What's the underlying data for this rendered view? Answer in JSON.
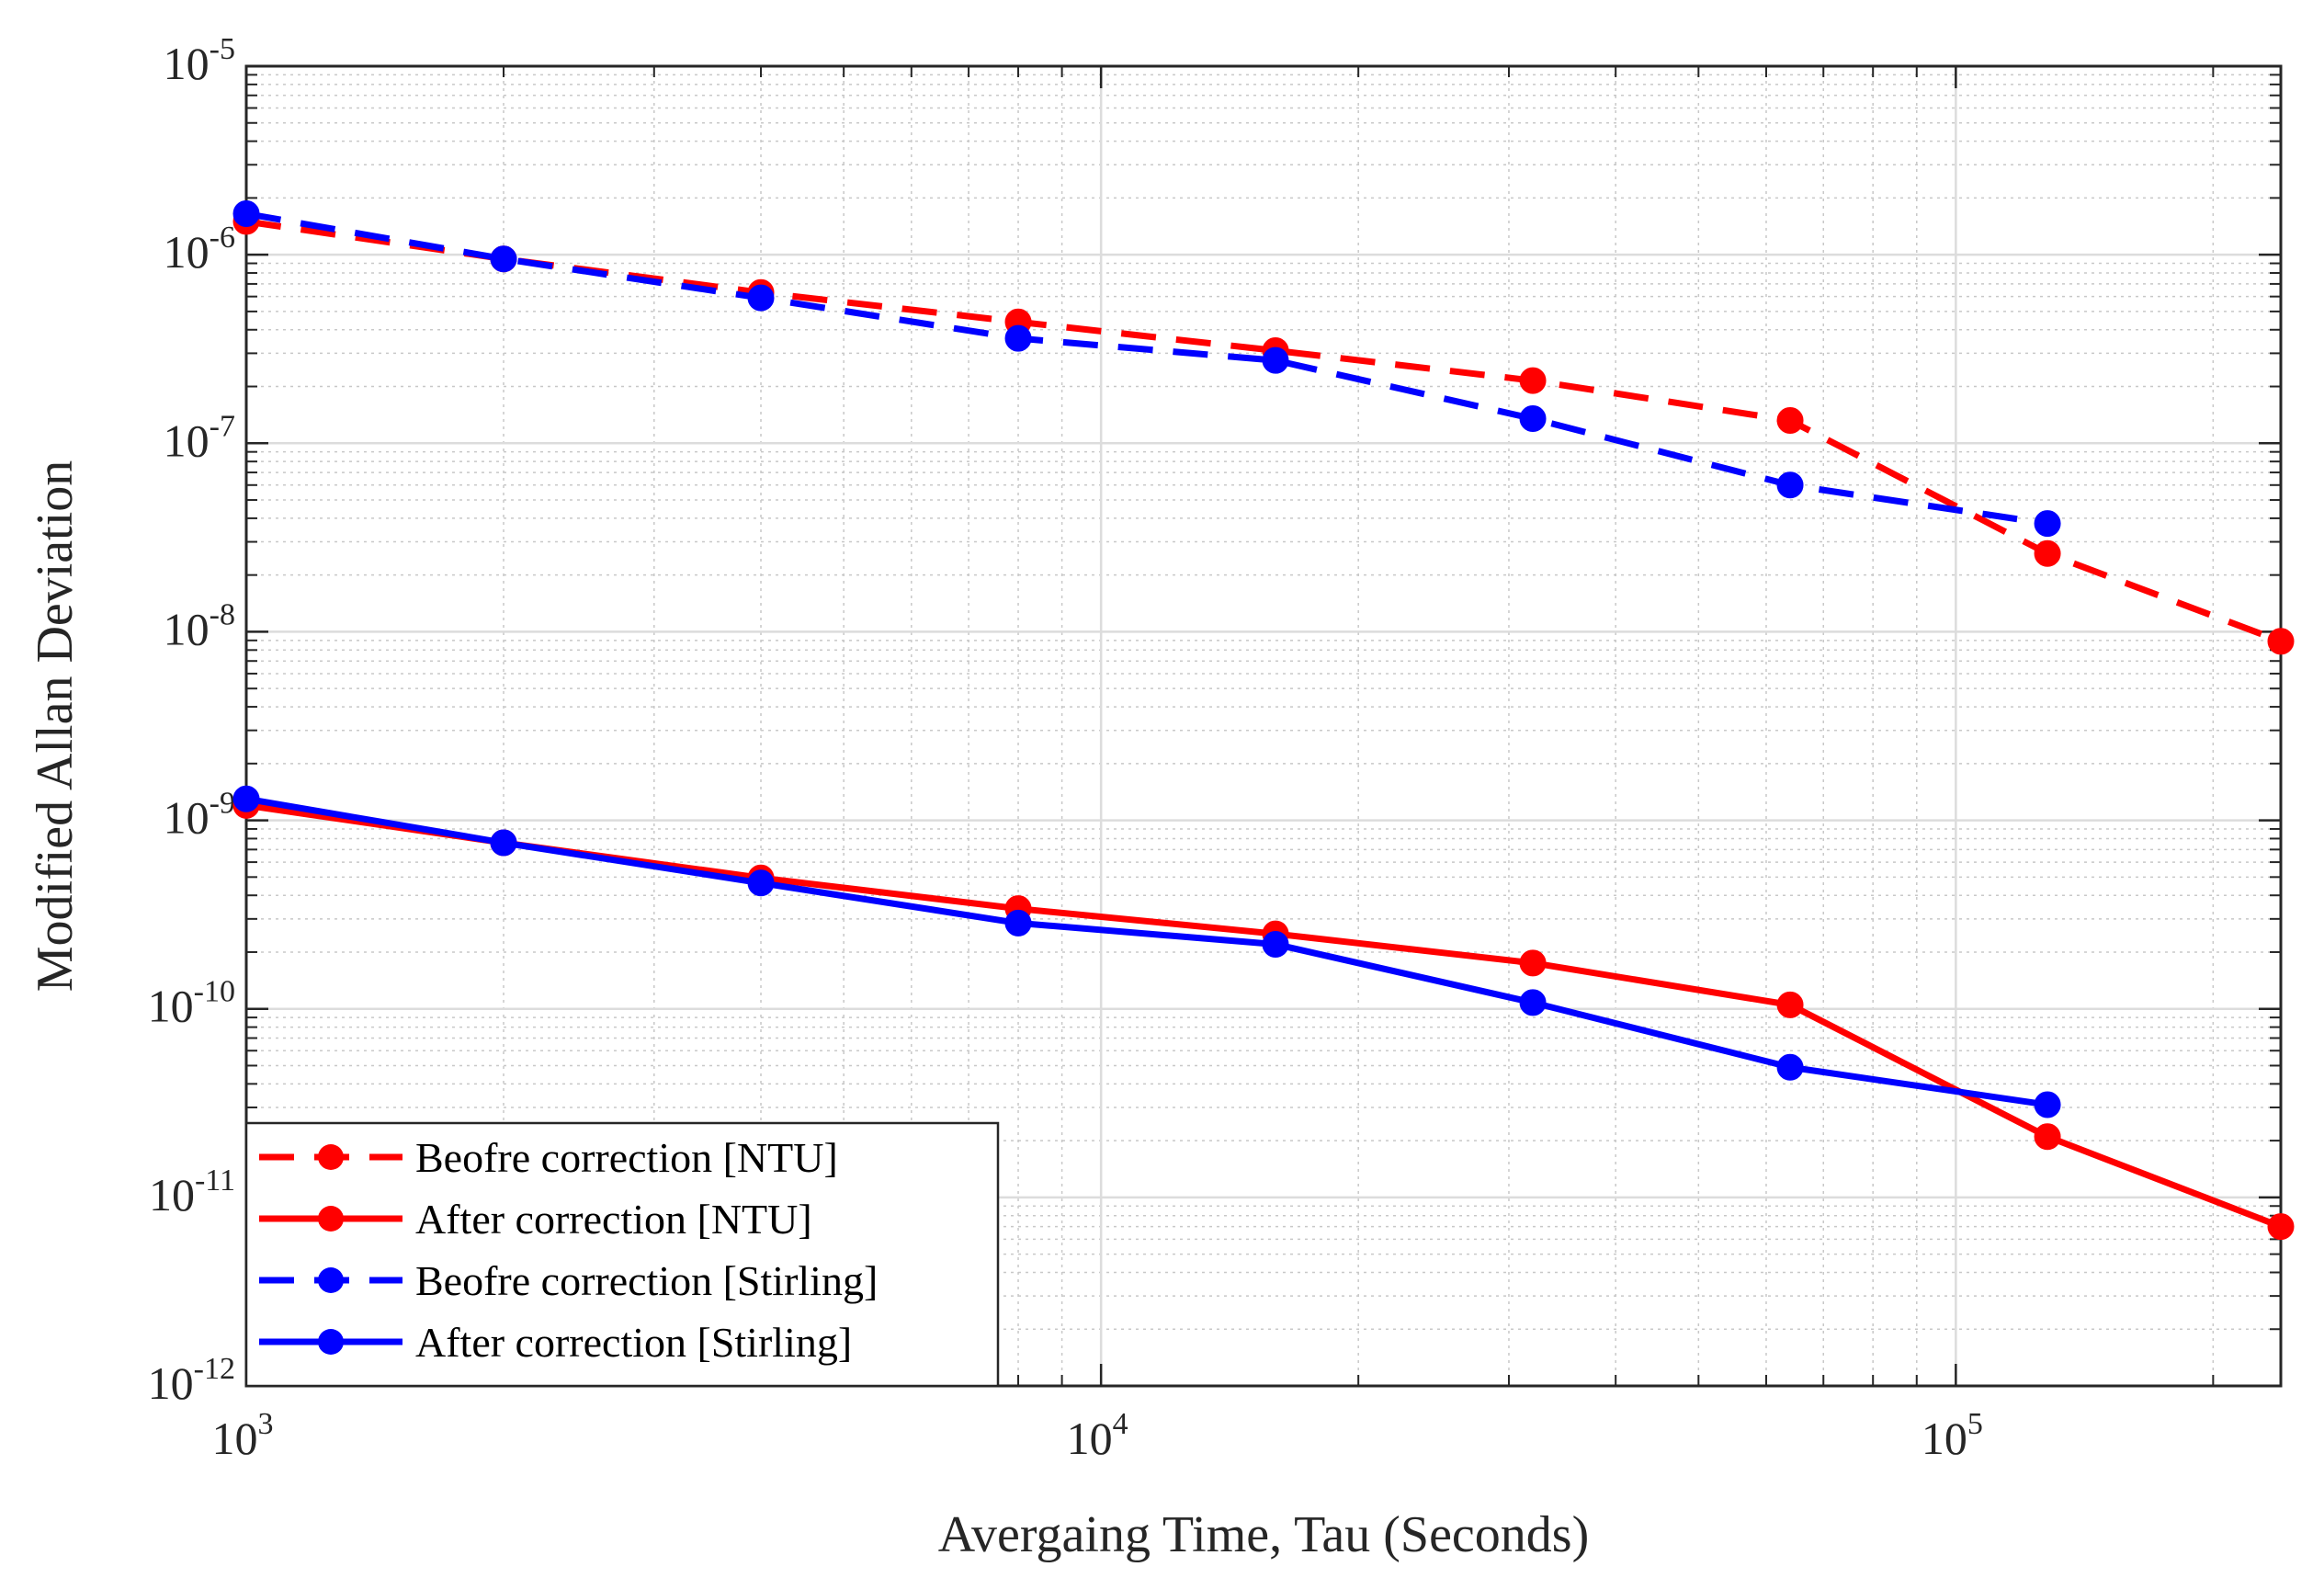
{
  "chart_data": {
    "type": "line",
    "title": "",
    "xlabel": "Avergaing Time, Tau (Seconds)",
    "ylabel": "Modified Allan Deviation",
    "xscale": "log",
    "yscale": "log",
    "xlim": [
      1000,
      240000
    ],
    "ylim": [
      1e-12,
      1e-05
    ],
    "grid": true,
    "minor_grid": true,
    "legend_position": "bottom-left",
    "x_ticks": [
      {
        "value": 1000,
        "base": "10",
        "exp": "3"
      },
      {
        "value": 10000,
        "base": "10",
        "exp": "4"
      },
      {
        "value": 100000,
        "base": "10",
        "exp": "5"
      }
    ],
    "y_ticks": [
      {
        "value": 1e-12,
        "base": "10",
        "exp": "-12"
      },
      {
        "value": 1e-11,
        "base": "10",
        "exp": "-11"
      },
      {
        "value": 1e-10,
        "base": "10",
        "exp": "-10"
      },
      {
        "value": 1e-09,
        "base": "10",
        "exp": "-9"
      },
      {
        "value": 1e-08,
        "base": "10",
        "exp": "-8"
      },
      {
        "value": 1e-07,
        "base": "10",
        "exp": "-7"
      },
      {
        "value": 1e-06,
        "base": "10",
        "exp": "-6"
      },
      {
        "value": 1e-05,
        "base": "10",
        "exp": "-5"
      }
    ],
    "series": [
      {
        "name": "Beofre correction [NTU]",
        "color": "#ff0000",
        "style": "dashed",
        "x": [
          1000,
          2000,
          4000,
          8000,
          16000,
          32000,
          64000,
          128000,
          240000
        ],
        "y": [
          1.5e-06,
          9.5e-07,
          6.3e-07,
          4.4e-07,
          3.1e-07,
          2.15e-07,
          1.32e-07,
          2.6e-08,
          8.9e-09
        ]
      },
      {
        "name": "After correction [NTU]",
        "color": "#ff0000",
        "style": "solid",
        "x": [
          1000,
          2000,
          4000,
          8000,
          16000,
          32000,
          64000,
          128000,
          240000
        ],
        "y": [
          1.2e-09,
          7.6e-10,
          4.95e-10,
          3.4e-10,
          2.5e-10,
          1.75e-10,
          1.05e-10,
          2.1e-11,
          7e-12
        ]
      },
      {
        "name": "Beofre correction [Stirling]",
        "color": "#0000ff",
        "style": "dashed",
        "x": [
          1000,
          2000,
          4000,
          8000,
          16000,
          32000,
          64000,
          128000
        ],
        "y": [
          1.65e-06,
          9.5e-07,
          5.9e-07,
          3.6e-07,
          2.75e-07,
          1.35e-07,
          6e-08,
          3.75e-08
        ]
      },
      {
        "name": "After correction [Stirling]",
        "color": "#0000ff",
        "style": "solid",
        "x": [
          1000,
          2000,
          4000,
          8000,
          16000,
          32000,
          64000,
          128000
        ],
        "y": [
          1.3e-09,
          7.6e-10,
          4.65e-10,
          2.85e-10,
          2.2e-10,
          1.08e-10,
          4.9e-11,
          3.1e-11
        ]
      }
    ]
  }
}
